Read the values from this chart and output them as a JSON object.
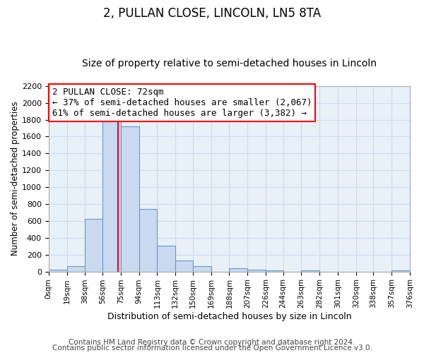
{
  "title": "2, PULLAN CLOSE, LINCOLN, LN5 8TA",
  "subtitle": "Size of property relative to semi-detached houses in Lincoln",
  "xlabel": "Distribution of semi-detached houses by size in Lincoln",
  "ylabel": "Number of semi-detached properties",
  "bin_edges": [
    0,
    19,
    38,
    56,
    75,
    94,
    113,
    132,
    150,
    169,
    188,
    207,
    226,
    244,
    263,
    282,
    301,
    320,
    338,
    357,
    376
  ],
  "bin_counts": [
    20,
    60,
    625,
    1830,
    1720,
    740,
    305,
    130,
    65,
    0,
    40,
    20,
    10,
    0,
    10,
    0,
    0,
    0,
    0,
    10
  ],
  "bar_color": "#c9d9f0",
  "bar_edge_color": "#6699cc",
  "vline_x": 72,
  "vline_color": "red",
  "annotation_title": "2 PULLAN CLOSE: 72sqm",
  "annotation_line1": "← 37% of semi-detached houses are smaller (2,067)",
  "annotation_line2": "61% of semi-detached houses are larger (3,382) →",
  "annotation_box_color": "white",
  "annotation_box_edge": "red",
  "ylim": [
    0,
    2200
  ],
  "yticks": [
    0,
    200,
    400,
    600,
    800,
    1000,
    1200,
    1400,
    1600,
    1800,
    2000,
    2200
  ],
  "xtick_labels": [
    "0sqm",
    "19sqm",
    "38sqm",
    "56sqm",
    "75sqm",
    "94sqm",
    "113sqm",
    "132sqm",
    "150sqm",
    "169sqm",
    "188sqm",
    "207sqm",
    "226sqm",
    "244sqm",
    "263sqm",
    "282sqm",
    "301sqm",
    "320sqm",
    "338sqm",
    "357sqm",
    "376sqm"
  ],
  "grid_color": "#ccddee",
  "background_color": "#e8f0f8",
  "footer1": "Contains HM Land Registry data © Crown copyright and database right 2024.",
  "footer2": "Contains public sector information licensed under the Open Government Licence v3.0.",
  "title_fontsize": 12,
  "subtitle_fontsize": 10,
  "annotation_fontsize": 9,
  "footer_fontsize": 7.5
}
